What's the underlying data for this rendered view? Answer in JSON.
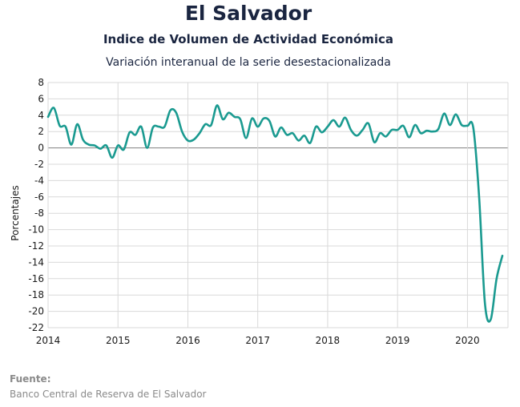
{
  "header": {
    "title": "El Salvador",
    "subtitle": "Indice de Volumen de  Actividad Económica",
    "subtitle2": "Variación interanual de la serie desestacionalizada"
  },
  "footer": {
    "source_label": "Fuente:",
    "source_text": "Banco Central de Reserva de El Salvador"
  },
  "colors": {
    "line": "#1a9a90",
    "grid": "#d9d9d9",
    "zero_line": "#7f7f7f"
  },
  "chart_data": {
    "type": "line",
    "title": "",
    "xlabel": "",
    "ylabel": "Porcentajes",
    "xlim": [
      2014.0,
      2020.58
    ],
    "ylim": [
      -22,
      8
    ],
    "y_ticks": [
      8,
      6,
      4,
      2,
      0,
      -2,
      -4,
      -6,
      -8,
      -10,
      -12,
      -14,
      -16,
      -18,
      -20,
      -22
    ],
    "x_ticks": [
      "2014",
      "2015",
      "2016",
      "2017",
      "2018",
      "2019",
      "2020"
    ],
    "grid": true,
    "legend": "none",
    "series": [
      {
        "values": [
          [
            2014.0,
            3.8
          ],
          [
            2014.083,
            4.9
          ],
          [
            2014.167,
            2.7
          ],
          [
            2014.25,
            2.6
          ],
          [
            2014.333,
            0.4
          ],
          [
            2014.417,
            2.9
          ],
          [
            2014.5,
            1.0
          ],
          [
            2014.583,
            0.4
          ],
          [
            2014.667,
            0.3
          ],
          [
            2014.75,
            -0.1
          ],
          [
            2014.833,
            0.3
          ],
          [
            2014.917,
            -1.2
          ],
          [
            2015.0,
            0.3
          ],
          [
            2015.083,
            -0.2
          ],
          [
            2015.167,
            1.9
          ],
          [
            2015.25,
            1.6
          ],
          [
            2015.333,
            2.6
          ],
          [
            2015.417,
            0.0
          ],
          [
            2015.5,
            2.5
          ],
          [
            2015.583,
            2.6
          ],
          [
            2015.667,
            2.6
          ],
          [
            2015.75,
            4.6
          ],
          [
            2015.833,
            4.3
          ],
          [
            2015.917,
            2.0
          ],
          [
            2016.0,
            0.9
          ],
          [
            2016.083,
            1.0
          ],
          [
            2016.167,
            1.8
          ],
          [
            2016.25,
            2.9
          ],
          [
            2016.333,
            2.8
          ],
          [
            2016.417,
            5.2
          ],
          [
            2016.5,
            3.5
          ],
          [
            2016.583,
            4.3
          ],
          [
            2016.667,
            3.8
          ],
          [
            2016.75,
            3.5
          ],
          [
            2016.833,
            1.2
          ],
          [
            2016.917,
            3.6
          ],
          [
            2017.0,
            2.6
          ],
          [
            2017.083,
            3.6
          ],
          [
            2017.167,
            3.3
          ],
          [
            2017.25,
            1.4
          ],
          [
            2017.333,
            2.5
          ],
          [
            2017.417,
            1.6
          ],
          [
            2017.5,
            1.8
          ],
          [
            2017.583,
            0.9
          ],
          [
            2017.667,
            1.5
          ],
          [
            2017.75,
            0.6
          ],
          [
            2017.833,
            2.6
          ],
          [
            2017.917,
            1.9
          ],
          [
            2018.0,
            2.6
          ],
          [
            2018.083,
            3.4
          ],
          [
            2018.167,
            2.6
          ],
          [
            2018.25,
            3.7
          ],
          [
            2018.333,
            2.2
          ],
          [
            2018.417,
            1.5
          ],
          [
            2018.5,
            2.2
          ],
          [
            2018.583,
            3.0
          ],
          [
            2018.667,
            0.7
          ],
          [
            2018.75,
            1.8
          ],
          [
            2018.833,
            1.4
          ],
          [
            2018.917,
            2.2
          ],
          [
            2019.0,
            2.2
          ],
          [
            2019.083,
            2.7
          ],
          [
            2019.167,
            1.3
          ],
          [
            2019.25,
            2.8
          ],
          [
            2019.333,
            1.8
          ],
          [
            2019.417,
            2.1
          ],
          [
            2019.5,
            2.0
          ],
          [
            2019.583,
            2.3
          ],
          [
            2019.667,
            4.2
          ],
          [
            2019.75,
            2.8
          ],
          [
            2019.833,
            4.1
          ],
          [
            2019.917,
            2.8
          ],
          [
            2020.0,
            2.7
          ],
          [
            2020.083,
            2.5
          ],
          [
            2020.167,
            -6.0
          ],
          [
            2020.25,
            -19.0
          ],
          [
            2020.333,
            -21.0
          ],
          [
            2020.417,
            -16.0
          ],
          [
            2020.5,
            -13.2
          ]
        ]
      }
    ]
  }
}
